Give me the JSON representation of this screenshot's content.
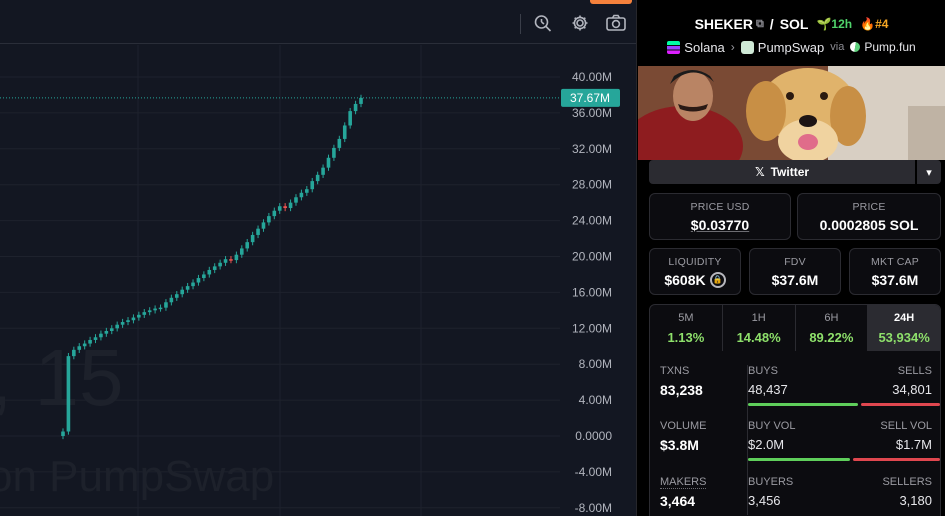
{
  "chart": {
    "watermark_line1": ", 15",
    "watermark_line2": "on PumpSwap",
    "last_price_label": "37.67M",
    "last_price_color": "#26a69a",
    "up_color": "#26a69a",
    "down_color": "#ef5350",
    "toolbar_icons": [
      "search-zoom-icon",
      "gear-icon",
      "camera-icon"
    ]
  },
  "chart_data": {
    "type": "candlestick",
    "y_ticks": [
      "40.00M",
      "36.00M",
      "32.00M",
      "28.00M",
      "24.00M",
      "20.00M",
      "16.00M",
      "12.00M",
      "8.00M",
      "4.00M",
      "0.0000",
      "-4.00M",
      "-8.00M"
    ],
    "y_range_millions": [
      -8,
      40
    ],
    "last_value_millions": 37.67,
    "series_close_millions": [
      0.5,
      8.9,
      9.6,
      10.0,
      10.3,
      10.7,
      11.0,
      11.4,
      11.7,
      12.0,
      12.4,
      12.7,
      12.9,
      13.2,
      13.5,
      13.8,
      14.0,
      14.2,
      14.3,
      14.9,
      15.4,
      15.8,
      16.3,
      16.7,
      17.1,
      17.6,
      18.0,
      18.5,
      18.9,
      19.3,
      19.7,
      19.6,
      20.2,
      20.9,
      21.6,
      22.4,
      23.1,
      23.8,
      24.5,
      25.1,
      25.6,
      25.4,
      26.0,
      26.6,
      27.1,
      27.5,
      28.4,
      29.1,
      29.9,
      31.0,
      32.1,
      33.1,
      34.6,
      36.2,
      37.0,
      37.67
    ]
  },
  "token": {
    "symbol": "SHEKER",
    "quote": "SOL",
    "age": "12h",
    "rank": "#4",
    "chain": "Solana",
    "dex": "PumpSwap",
    "via_label": "via",
    "launchpad": "Pump.fun"
  },
  "social": {
    "twitter_label": "Twitter"
  },
  "prices": {
    "usd_label": "PRICE USD",
    "usd_value": "$0.03770",
    "native_label": "PRICE",
    "native_value": "0.0002805 SOL"
  },
  "metrics": {
    "liquidity_label": "LIQUIDITY",
    "liquidity_value": "$608K",
    "fdv_label": "FDV",
    "fdv_value": "$37.6M",
    "mcap_label": "MKT CAP",
    "mcap_value": "$37.6M"
  },
  "timeframes": [
    {
      "label": "5M",
      "change": "1.13%"
    },
    {
      "label": "1H",
      "change": "14.48%"
    },
    {
      "label": "6H",
      "change": "89.22%"
    },
    {
      "label": "24H",
      "change": "53,934%"
    }
  ],
  "stats": {
    "txns_label": "TXNS",
    "txns_value": "83,238",
    "buys_label": "BUYS",
    "buys_value": "48,437",
    "sells_label": "SELLS",
    "sells_value": "34,801",
    "buys_ratio": 0.582,
    "volume_label": "VOLUME",
    "volume_value": "$3.8M",
    "buy_vol_label": "BUY VOL",
    "buy_vol_value": "$2.0M",
    "sell_vol_label": "SELL VOL",
    "sell_vol_value": "$1.7M",
    "buy_vol_ratio": 0.54,
    "makers_label": "MAKERS",
    "makers_value": "3,464",
    "buyers_label": "BUYERS",
    "buyers_value": "3,456",
    "sellers_label": "SELLERS",
    "sellers_value": "3,180"
  }
}
